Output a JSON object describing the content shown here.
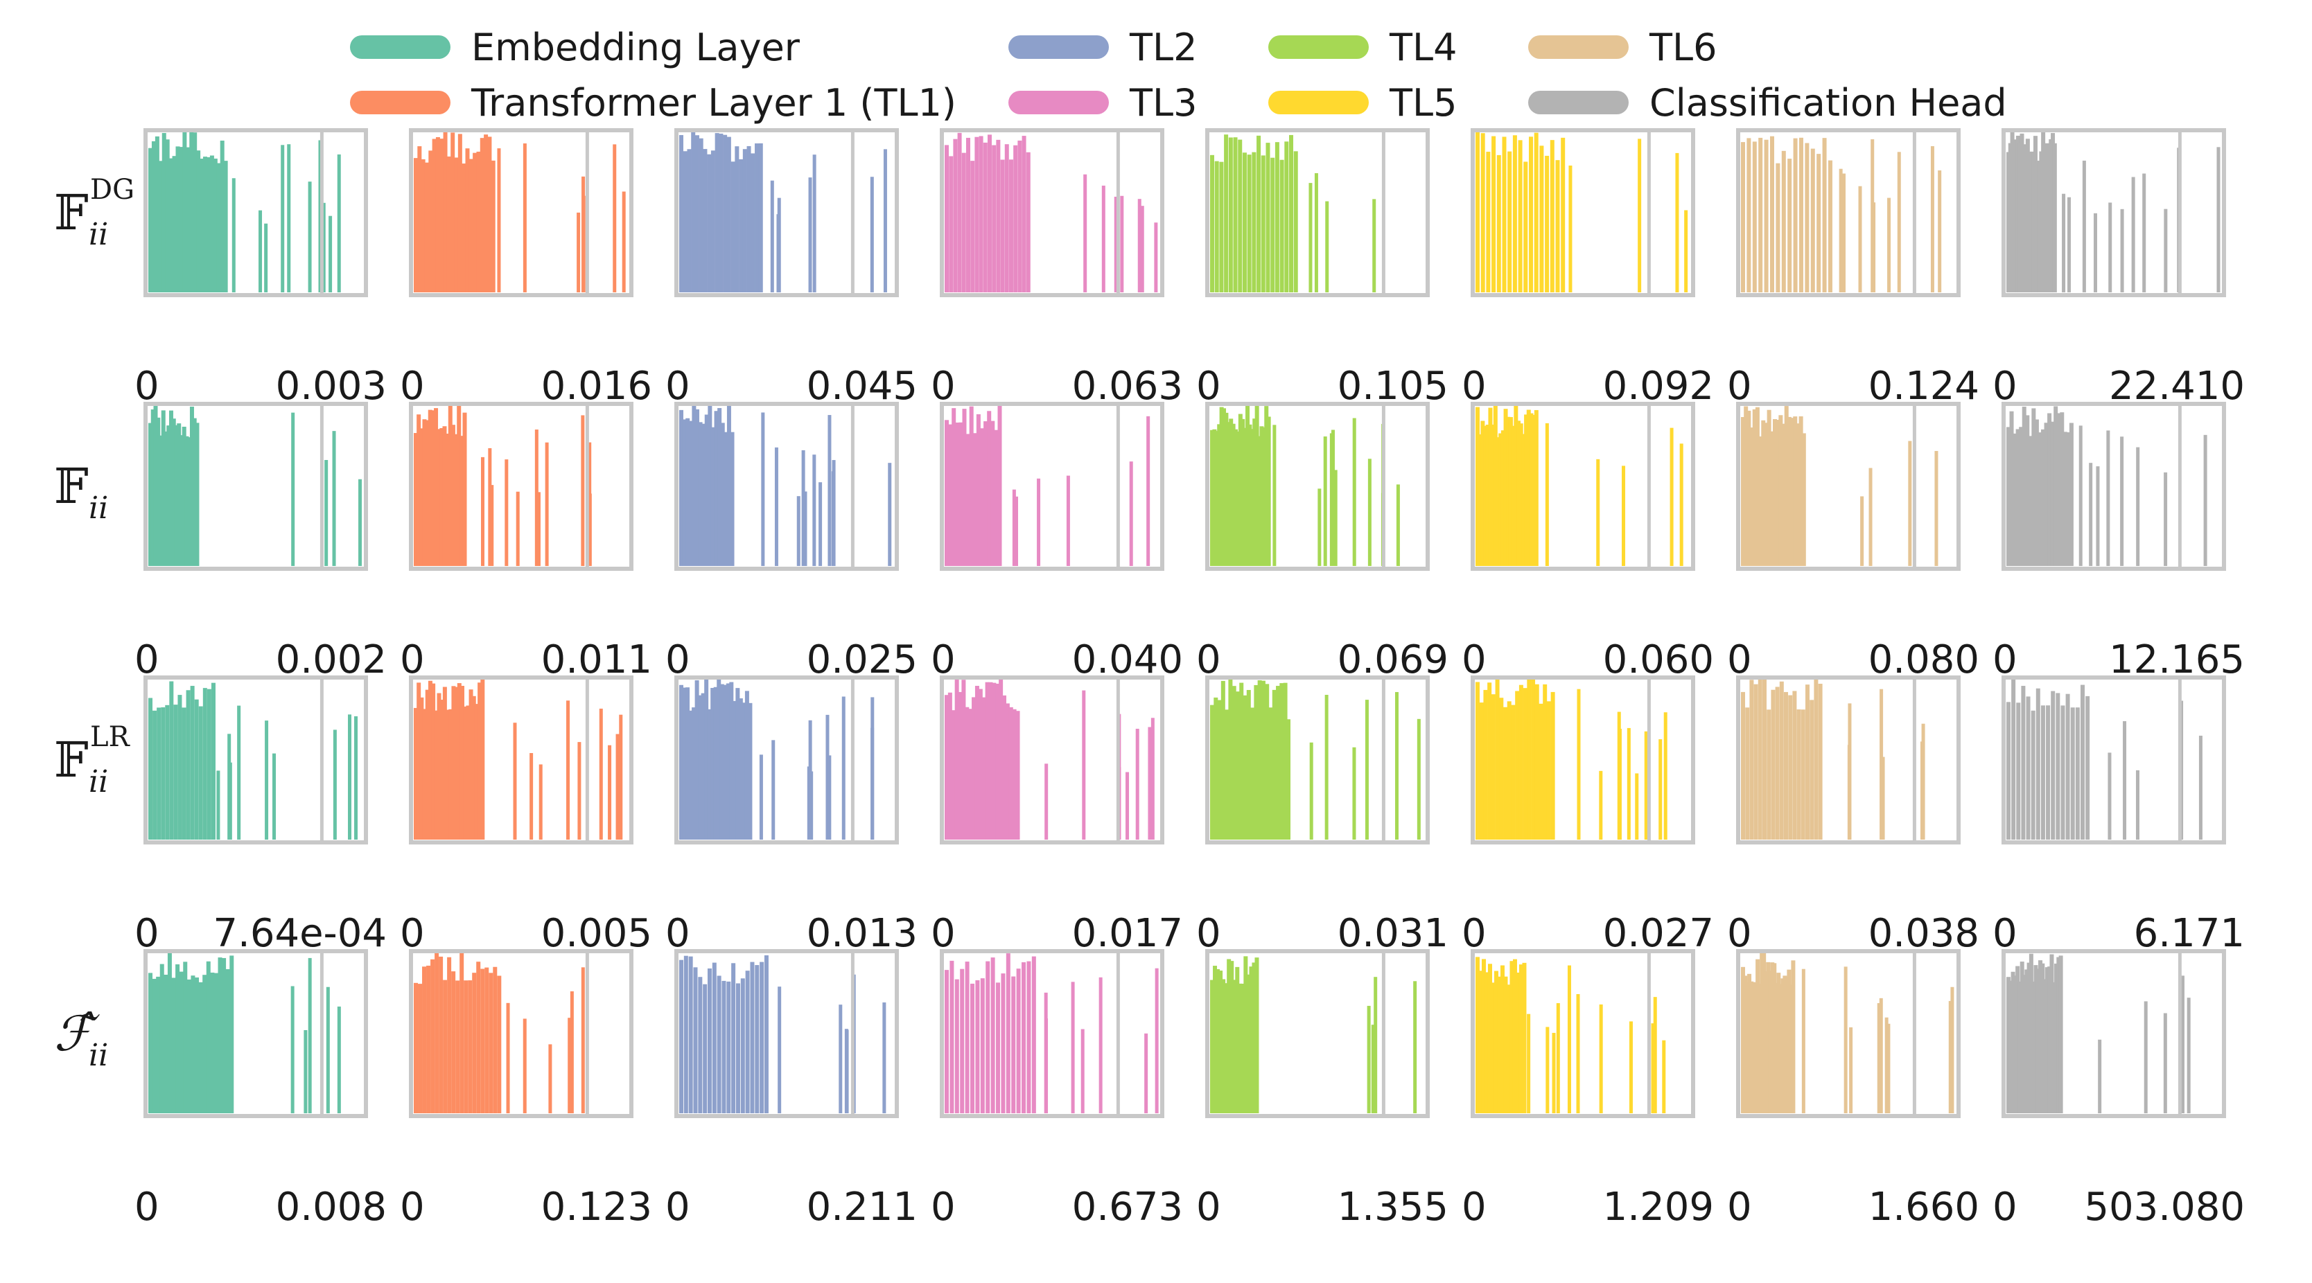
{
  "chart_data": {
    "type": "bar",
    "title": "",
    "legend": {
      "placement": "top-center",
      "entries": [
        {
          "label": "Embedding Layer",
          "color": "#66c2a5"
        },
        {
          "label": "Transformer Layer 1 (TL1)",
          "color": "#fc8d62"
        },
        {
          "label": "TL2",
          "color": "#8da0cb"
        },
        {
          "label": "TL3",
          "color": "#e78ac3"
        },
        {
          "label": "TL4",
          "color": "#a6d854"
        },
        {
          "label": "TL5",
          "color": "#ffd92f"
        },
        {
          "label": "TL6",
          "color": "#e5c494"
        },
        {
          "label": "Classification Head",
          "color": "#b3b3b3"
        }
      ]
    },
    "columns": [
      "Embedding Layer",
      "Transformer Layer 1 (TL1)",
      "TL2",
      "TL3",
      "TL4",
      "TL5",
      "TL6",
      "Classification Head"
    ],
    "rows": [
      {
        "label_main": "𝔽",
        "label_sub": "ii",
        "label_sup": "DG",
        "x_min_labels": [
          "0",
          "0",
          "0",
          "0",
          "0",
          "0",
          "0",
          "0"
        ],
        "x_max_labels": [
          "0.003",
          "0.016",
          "0.045",
          "0.063",
          "0.105",
          "0.092",
          "0.124",
          "22.410"
        ],
        "x_max": [
          0.003,
          0.016,
          0.045,
          0.063,
          0.105,
          0.092,
          0.124,
          22.41
        ]
      },
      {
        "label_main": "𝔽",
        "label_sub": "ii",
        "label_sup": "",
        "x_min_labels": [
          "0",
          "0",
          "0",
          "0",
          "0",
          "0",
          "0",
          "0"
        ],
        "x_max_labels": [
          "0.002",
          "0.011",
          "0.025",
          "0.040",
          "0.069",
          "0.060",
          "0.080",
          "12.165"
        ],
        "x_max": [
          0.002,
          0.011,
          0.025,
          0.04,
          0.069,
          0.06,
          0.08,
          12.165
        ]
      },
      {
        "label_main": "𝔽",
        "label_sub": "ii",
        "label_sup": "LR",
        "x_min_labels": [
          "0",
          "0",
          "0",
          "0",
          "0",
          "0",
          "0",
          "0"
        ],
        "x_max_labels": [
          "7.64e-04",
          "0.005",
          "0.013",
          "0.017",
          "0.031",
          "0.027",
          "0.038",
          "6.171"
        ],
        "x_max": [
          0.000764,
          0.005,
          0.013,
          0.017,
          0.031,
          0.027,
          0.038,
          6.171
        ]
      },
      {
        "label_main": "ℱ̂",
        "label_sub": "ii",
        "label_sup": "",
        "x_min_labels": [
          "0",
          "0",
          "0",
          "0",
          "0",
          "0",
          "0",
          "0"
        ],
        "x_max_labels": [
          "0.008",
          "0.123",
          "0.211",
          "0.673",
          "1.355",
          "1.209",
          "1.660",
          "503.080"
        ],
        "x_max": [
          0.008,
          0.123,
          0.211,
          0.673,
          1.355,
          1.209,
          1.66,
          503.08
        ]
      }
    ],
    "xlabel": "",
    "ylabel": "",
    "xlim_fraction": [
      0,
      1
    ],
    "reference_line_fraction": 0.8,
    "grid": false
  }
}
